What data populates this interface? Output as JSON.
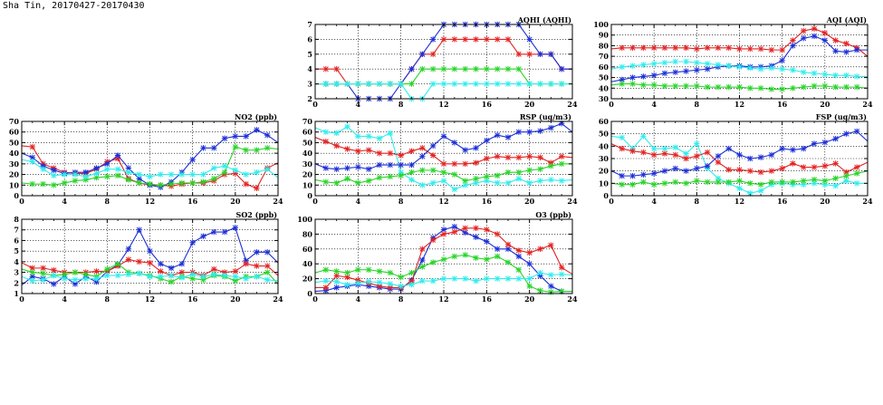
{
  "title": "Sha Tin, 20170427-20170430",
  "colors": {
    "blue": "#1c2fd6",
    "red": "#e42222",
    "green": "#28d428",
    "cyan": "#30ecec"
  },
  "chart_data": [
    {
      "id": "aqhi",
      "type": "line",
      "title": "AQHI (AQHI)",
      "xlim": [
        0,
        24
      ],
      "xticks": [
        0,
        4,
        8,
        12,
        16,
        20,
        24
      ],
      "ylim": [
        2,
        7
      ],
      "yticks": [
        2,
        3,
        4,
        5,
        6,
        7
      ],
      "grid": true,
      "series": [
        {
          "color": "red",
          "values": [
            4,
            4,
            4,
            3,
            3,
            3,
            3,
            3,
            3,
            4,
            5,
            5,
            6,
            6,
            6,
            6,
            6,
            6,
            6,
            5,
            5,
            5,
            5,
            4,
            4
          ]
        },
        {
          "color": "blue",
          "values": [
            3,
            3,
            3,
            3,
            2,
            2,
            2,
            2,
            3,
            4,
            5,
            6,
            7,
            7,
            7,
            7,
            7,
            7,
            7,
            7,
            6,
            5,
            5,
            4,
            4
          ]
        },
        {
          "color": "green",
          "values": [
            3,
            3,
            3,
            3,
            3,
            3,
            3,
            3,
            3,
            3,
            4,
            4,
            4,
            4,
            4,
            4,
            4,
            4,
            4,
            4,
            3,
            3,
            3,
            3,
            3
          ]
        },
        {
          "color": "cyan",
          "values": [
            3,
            3,
            3,
            3,
            3,
            3,
            3,
            3,
            3,
            2,
            2,
            3,
            3,
            3,
            3,
            3,
            3,
            3,
            3,
            3,
            3,
            3,
            3,
            3,
            3
          ]
        }
      ]
    },
    {
      "id": "aqi",
      "type": "line",
      "title": "AQI (AQI)",
      "xlim": [
        0,
        24
      ],
      "xticks": [
        0,
        4,
        8,
        12,
        16,
        20,
        24
      ],
      "ylim": [
        30,
        100
      ],
      "yticks": [
        30,
        40,
        50,
        60,
        70,
        80,
        90,
        100
      ],
      "grid": true,
      "series": [
        {
          "color": "red",
          "values": [
            77,
            78,
            78,
            78,
            78,
            78,
            78,
            78,
            77,
            78,
            78,
            78,
            77,
            77,
            77,
            76,
            76,
            85,
            94,
            96,
            92,
            85,
            82,
            78,
            70
          ]
        },
        {
          "color": "blue",
          "values": [
            46,
            48,
            50,
            51,
            52,
            54,
            55,
            56,
            57,
            58,
            60,
            61,
            61,
            60,
            60,
            61,
            66,
            80,
            87,
            89,
            85,
            75,
            74,
            76,
            76
          ]
        },
        {
          "color": "cyan",
          "values": [
            58,
            60,
            61,
            62,
            63,
            64,
            65,
            65,
            64,
            63,
            62,
            61,
            60,
            59,
            58,
            59,
            58,
            57,
            55,
            54,
            53,
            52,
            52,
            51,
            51
          ]
        },
        {
          "color": "green",
          "values": [
            43,
            44,
            44,
            43,
            43,
            42,
            42,
            42,
            42,
            41,
            41,
            41,
            41,
            40,
            40,
            39,
            39,
            40,
            41,
            42,
            42,
            41,
            41,
            41,
            40
          ]
        }
      ]
    },
    {
      "id": "no2",
      "type": "line",
      "title": "NO2 (ppb)",
      "xlim": [
        0,
        24
      ],
      "xticks": [
        0,
        4,
        8,
        12,
        16,
        20,
        24
      ],
      "ylim": [
        0,
        70
      ],
      "yticks": [
        0,
        10,
        20,
        30,
        40,
        50,
        60,
        70
      ],
      "grid": true,
      "series": [
        {
          "color": "red",
          "values": [
            47,
            46,
            30,
            26,
            22,
            21,
            21,
            25,
            32,
            35,
            16,
            12,
            10,
            10,
            9,
            11,
            12,
            12,
            14,
            20,
            21,
            11,
            7,
            26,
            31
          ]
        },
        {
          "color": "blue",
          "values": [
            40,
            36,
            28,
            24,
            21,
            22,
            22,
            26,
            30,
            38,
            26,
            16,
            10,
            8,
            13,
            22,
            34,
            45,
            45,
            54,
            56,
            56,
            62,
            57,
            50
          ]
        },
        {
          "color": "green",
          "values": [
            12,
            11,
            11,
            10,
            12,
            14,
            15,
            17,
            18,
            19,
            15,
            12,
            11,
            10,
            11,
            12,
            12,
            13,
            16,
            22,
            46,
            43,
            43,
            45,
            44
          ]
        },
        {
          "color": "cyan",
          "values": [
            34,
            32,
            25,
            19,
            20,
            20,
            18,
            21,
            25,
            25,
            22,
            20,
            18,
            20,
            20,
            20,
            20,
            20,
            26,
            28,
            24,
            20,
            22,
            25,
            17
          ]
        }
      ]
    },
    {
      "id": "rsp",
      "type": "line",
      "title": "RSP (ug/m3)",
      "xlim": [
        0,
        24
      ],
      "xticks": [
        0,
        4,
        8,
        12,
        16,
        20,
        24
      ],
      "ylim": [
        0,
        70
      ],
      "yticks": [
        0,
        10,
        20,
        30,
        40,
        50,
        60,
        70
      ],
      "grid": true,
      "series": [
        {
          "color": "cyan",
          "values": [
            64,
            60,
            59,
            65,
            56,
            56,
            54,
            59,
            22,
            15,
            10,
            12,
            14,
            6,
            10,
            12,
            14,
            12,
            12,
            16,
            12,
            14,
            15,
            14,
            15
          ]
        },
        {
          "color": "red",
          "values": [
            55,
            51,
            47,
            44,
            42,
            43,
            40,
            40,
            38,
            42,
            45,
            38,
            30,
            30,
            30,
            31,
            35,
            37,
            36,
            36,
            37,
            36,
            31,
            37,
            36
          ]
        },
        {
          "color": "blue",
          "values": [
            30,
            26,
            25,
            26,
            27,
            25,
            29,
            29,
            29,
            29,
            37,
            47,
            56,
            50,
            43,
            45,
            52,
            57,
            55,
            60,
            60,
            61,
            64,
            68,
            60
          ]
        },
        {
          "color": "green",
          "values": [
            15,
            13,
            12,
            16,
            12,
            14,
            17,
            18,
            19,
            22,
            24,
            24,
            22,
            20,
            14,
            16,
            18,
            19,
            22,
            22,
            24,
            25,
            28,
            30,
            30
          ]
        }
      ]
    },
    {
      "id": "fsp",
      "type": "line",
      "title": "FSP (ug/m3)",
      "xlim": [
        0,
        24
      ],
      "xticks": [
        0,
        4,
        8,
        12,
        16,
        20,
        24
      ],
      "ylim": [
        0,
        60
      ],
      "yticks": [
        0,
        10,
        20,
        30,
        40,
        50,
        60
      ],
      "grid": true,
      "series": [
        {
          "color": "cyan",
          "values": [
            48,
            47,
            38,
            48,
            38,
            38,
            39,
            34,
            42,
            22,
            14,
            10,
            6,
            2,
            4,
            9,
            10,
            9,
            9,
            10,
            9,
            8,
            12,
            10,
            10
          ]
        },
        {
          "color": "red",
          "values": [
            42,
            38,
            36,
            35,
            33,
            34,
            33,
            30,
            32,
            35,
            27,
            21,
            21,
            20,
            19,
            20,
            22,
            26,
            23,
            23,
            24,
            26,
            19,
            23,
            27
          ]
        },
        {
          "color": "blue",
          "values": [
            20,
            16,
            16,
            17,
            18,
            20,
            22,
            20,
            22,
            24,
            32,
            38,
            33,
            30,
            31,
            33,
            38,
            37,
            38,
            42,
            43,
            46,
            50,
            52,
            44
          ]
        },
        {
          "color": "green",
          "values": [
            10,
            9,
            9,
            11,
            9,
            10,
            11,
            10,
            12,
            11,
            11,
            11,
            12,
            10,
            9,
            11,
            11,
            11,
            12,
            13,
            12,
            14,
            16,
            18,
            20
          ]
        }
      ]
    },
    {
      "id": "so2",
      "type": "line",
      "title": "SO2 (ppb)",
      "xlim": [
        0,
        24
      ],
      "xticks": [
        0,
        4,
        8,
        12,
        16,
        20,
        24
      ],
      "ylim": [
        1,
        8
      ],
      "yticks": [
        1,
        2,
        3,
        4,
        5,
        6,
        7,
        8
      ],
      "grid": true,
      "series": [
        {
          "color": "blue",
          "values": [
            1.8,
            2.6,
            2.4,
            1.9,
            2.6,
            1.9,
            2.6,
            2.1,
            3.1,
            3.7,
            5.2,
            7.0,
            5.0,
            3.8,
            3.4,
            3.8,
            5.8,
            6.4,
            6.8,
            6.8,
            7.2,
            4.1,
            4.9,
            4.9,
            3.9
          ]
        },
        {
          "color": "red",
          "values": [
            3.9,
            3.4,
            3.4,
            3.2,
            3.0,
            3.0,
            3.0,
            3.1,
            3.1,
            3.6,
            4.2,
            4.0,
            3.9,
            3.1,
            2.7,
            3.0,
            3.0,
            2.7,
            3.3,
            3.0,
            3.1,
            3.8,
            3.6,
            3.6,
            2.7
          ]
        },
        {
          "color": "green",
          "values": [
            3.3,
            3.0,
            2.9,
            2.7,
            2.8,
            3.0,
            2.8,
            2.6,
            3.3,
            3.8,
            3.0,
            2.9,
            2.7,
            2.4,
            2.1,
            2.6,
            2.4,
            2.3,
            2.7,
            2.6,
            2.2,
            2.6,
            2.6,
            3.0,
            1.9
          ]
        },
        {
          "color": "cyan",
          "values": [
            2.6,
            2.2,
            2.3,
            2.7,
            2.4,
            2.3,
            2.4,
            2.4,
            2.7,
            2.7,
            2.8,
            2.9,
            2.6,
            2.6,
            2.7,
            2.5,
            2.8,
            2.6,
            2.8,
            2.7,
            2.6,
            2.4,
            2.6,
            2.3,
            2.2
          ]
        }
      ]
    },
    {
      "id": "o3",
      "type": "line",
      "title": "O3 (ppb)",
      "xlim": [
        0,
        24
      ],
      "xticks": [
        0,
        4,
        8,
        12,
        16,
        20,
        24
      ],
      "ylim": [
        0,
        100
      ],
      "yticks": [
        0,
        20,
        40,
        60,
        80,
        100
      ],
      "grid": true,
      "series": [
        {
          "color": "blue",
          "values": [
            3,
            4,
            8,
            10,
            12,
            10,
            8,
            6,
            6,
            18,
            45,
            75,
            86,
            90,
            82,
            76,
            70,
            60,
            60,
            50,
            40,
            24,
            10,
            3,
            3
          ]
        },
        {
          "color": "red",
          "values": [
            8,
            8,
            24,
            22,
            18,
            14,
            10,
            8,
            8,
            16,
            60,
            72,
            80,
            83,
            88,
            88,
            86,
            80,
            66,
            58,
            55,
            60,
            65,
            35,
            26
          ]
        },
        {
          "color": "green",
          "values": [
            28,
            32,
            30,
            28,
            32,
            32,
            30,
            28,
            22,
            28,
            36,
            42,
            46,
            50,
            52,
            48,
            46,
            50,
            42,
            32,
            10,
            4,
            2,
            3,
            3
          ]
        },
        {
          "color": "cyan",
          "values": [
            15,
            17,
            16,
            12,
            14,
            16,
            15,
            13,
            10,
            12,
            17,
            17,
            20,
            20,
            20,
            17,
            20,
            20,
            20,
            20,
            20,
            28,
            25,
            26,
            25
          ]
        }
      ]
    }
  ]
}
